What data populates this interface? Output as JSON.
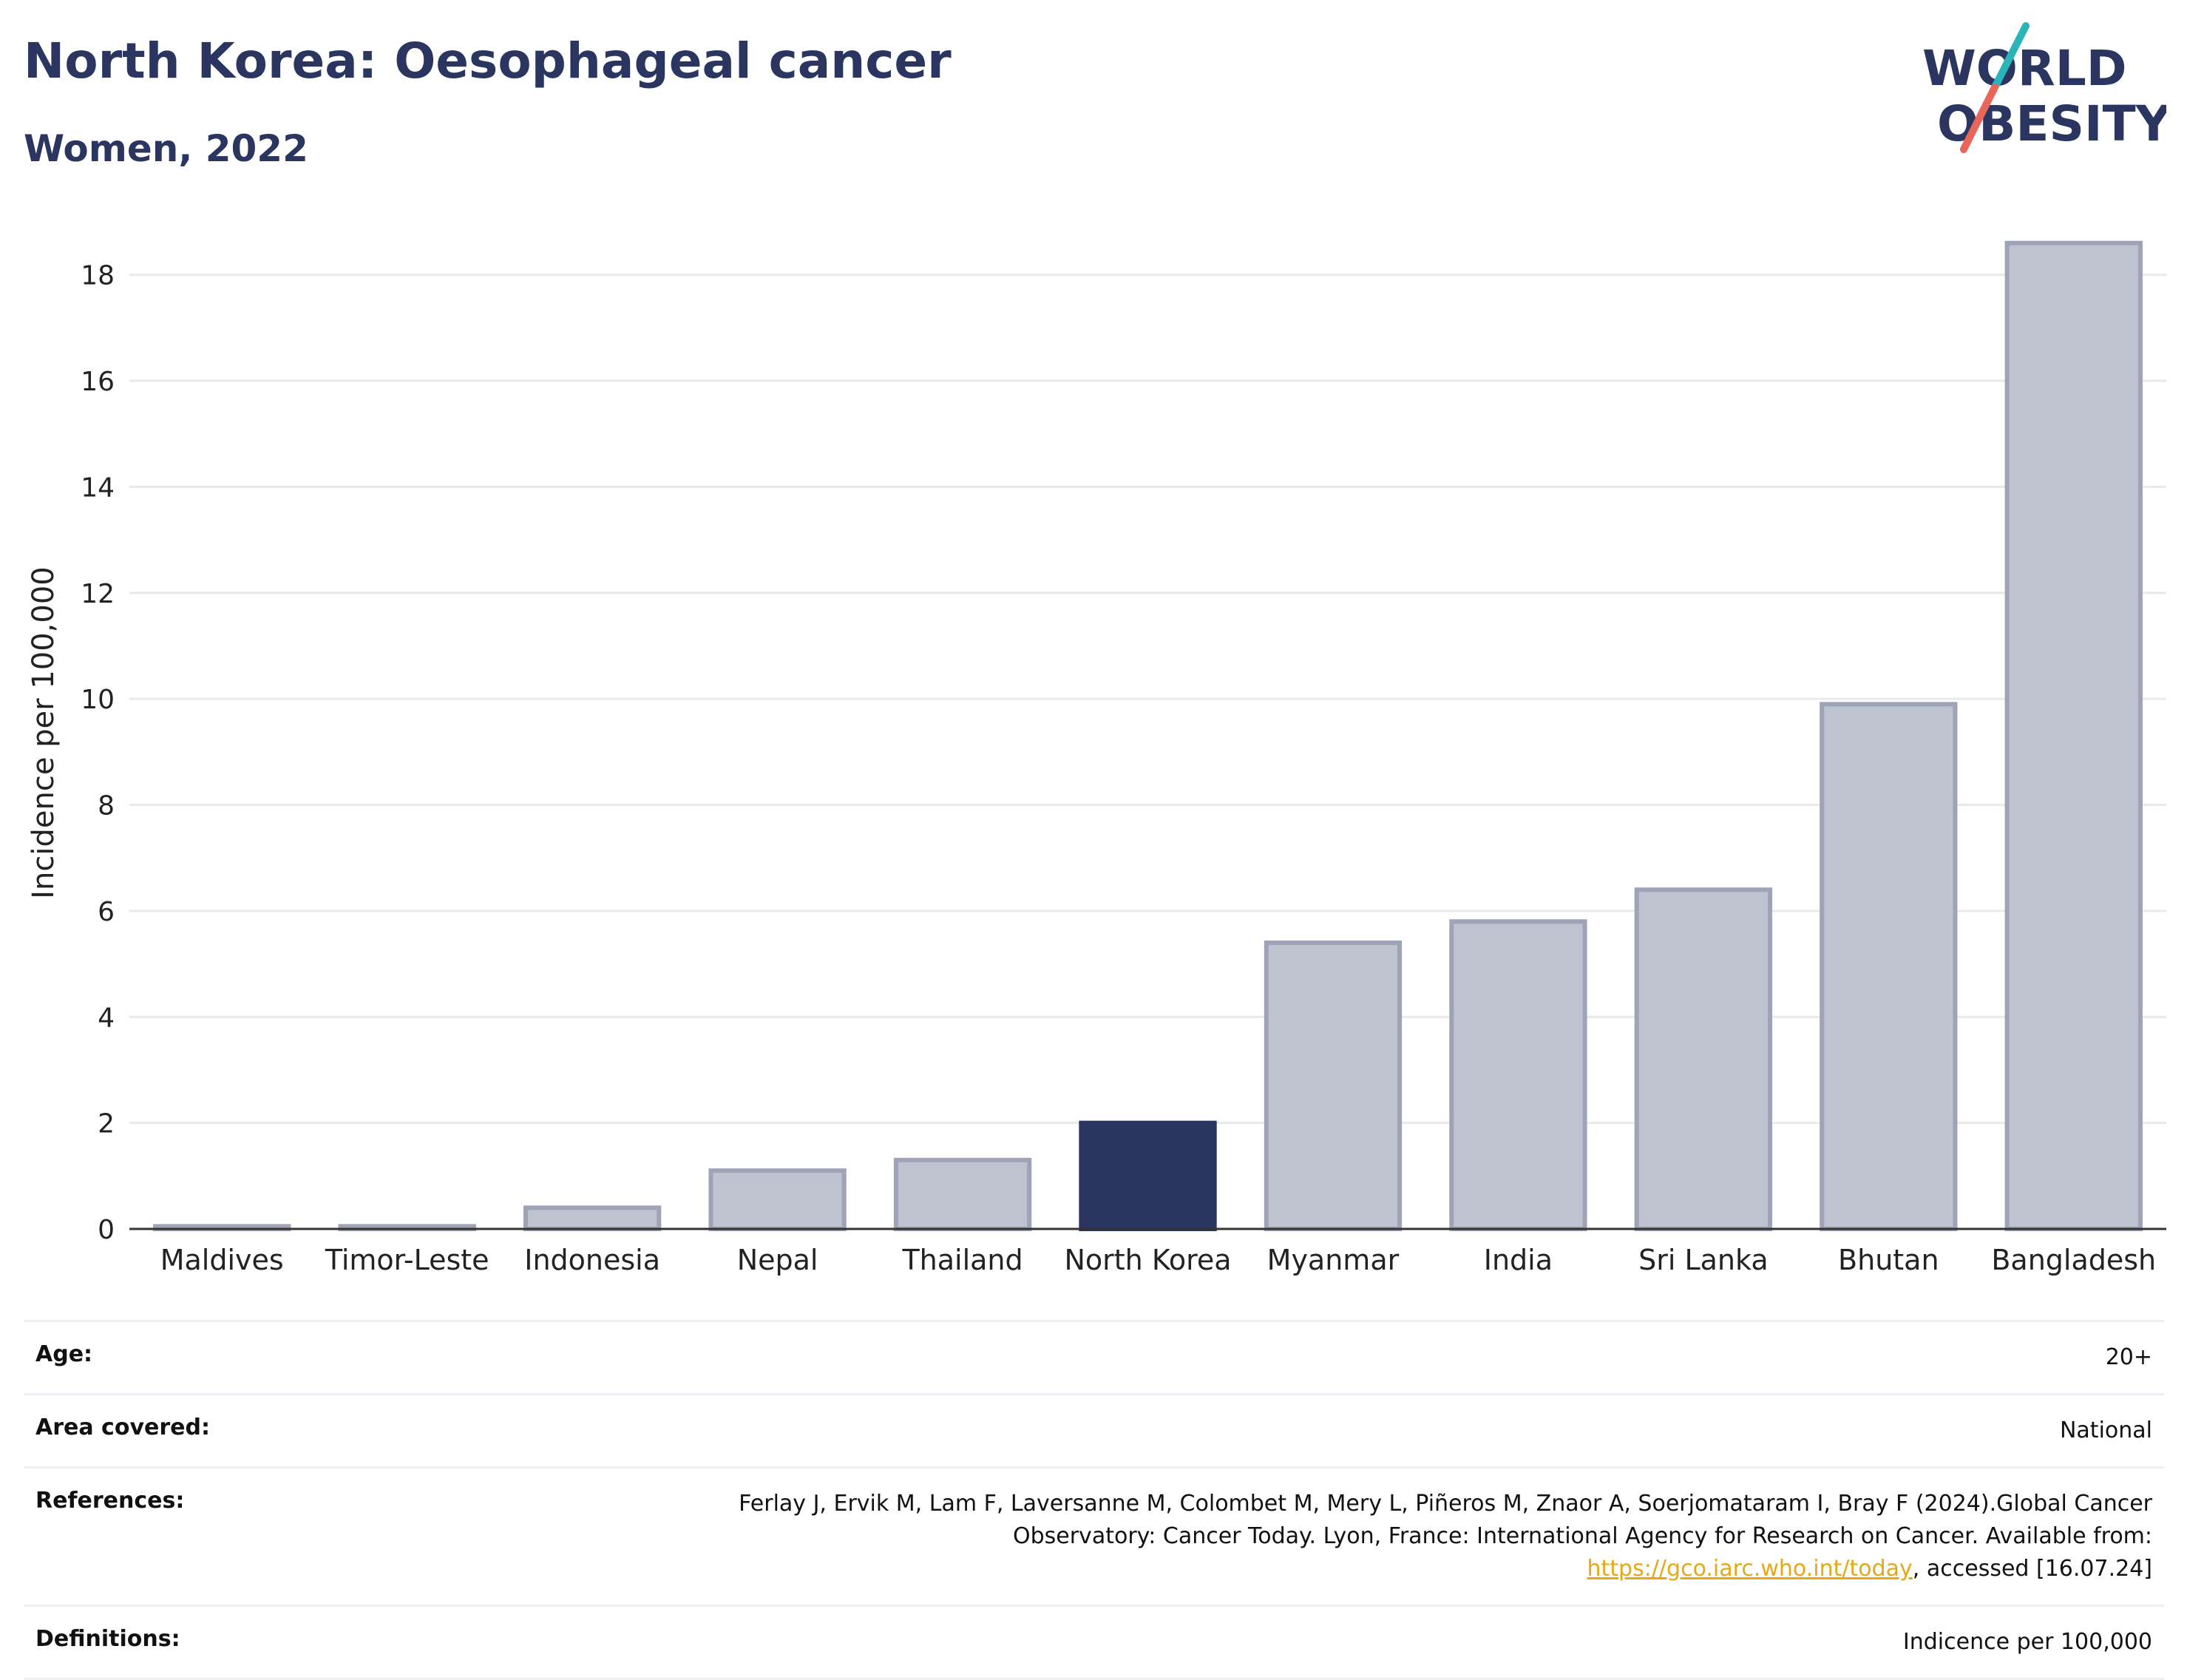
{
  "header": {
    "title": "North Korea: Oesophageal cancer",
    "subtitle": "Women, 2022"
  },
  "logo": {
    "line1": "WORLD",
    "line2": "OBESITY",
    "accent_colors": [
      "#2bb5b8",
      "#e8665a"
    ]
  },
  "colors": {
    "highlight": "#2a3560",
    "bar": "#bfc2cf",
    "bar_border": "#9ea3b8"
  },
  "chart_data": {
    "type": "bar",
    "ylabel": "Incidence per 100,000",
    "ylim": [
      0,
      19
    ],
    "yticks": [
      0,
      2,
      4,
      6,
      8,
      10,
      12,
      14,
      16,
      18
    ],
    "grid": true,
    "highlight": "North Korea",
    "categories": [
      "Maldives",
      "Timor-Leste",
      "Indonesia",
      "Nepal",
      "Thailand",
      "North Korea",
      "Myanmar",
      "India",
      "Sri Lanka",
      "Bhutan",
      "Bangladesh"
    ],
    "values": [
      0.05,
      0.05,
      0.4,
      1.1,
      1.3,
      2.0,
      5.4,
      5.8,
      6.4,
      9.9,
      18.6
    ]
  },
  "meta": {
    "age_label": "Age:",
    "age_value": "20+",
    "area_label": "Area covered:",
    "area_value": "National",
    "references_label": "References:",
    "references_text_1": "Ferlay J, Ervik M, Lam F, Laversanne M, Colombet M, Mery L, Piñeros M, Znaor A, Soerjomataram I, Bray F (2024).Global Cancer Observatory: Cancer Today. Lyon, France: International Agency for Research on Cancer. Available from: ",
    "references_link": "https://gco.iarc.who.int/today",
    "references_text_2": ", accessed [16.07.24]",
    "definitions_label": "Definitions:",
    "definitions_value": "Indicence per 100,000"
  }
}
